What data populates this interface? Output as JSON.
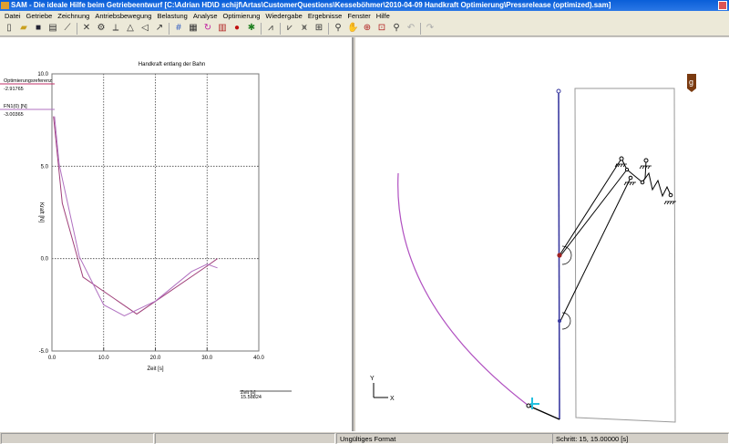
{
  "window": {
    "title": "SAM - Die ideale Hilfe beim Getriebeentwurf [C:\\Adrian HD\\D schijf\\Artas\\CustomerQuestions\\Kesseböhmer\\2010-04-09 Handkraft Optimierung\\Pressrelease (optimized).sam]"
  },
  "menu": [
    "Datei",
    "Getriebe",
    "Zeichnung",
    "Antriebsbewegung",
    "Belastung",
    "Analyse",
    "Optimierung",
    "Wiedergabe",
    "Ergebnisse",
    "Fenster",
    "Hilfe"
  ],
  "toolbar": [
    "new-icon",
    "open-icon",
    "save-icon",
    "print-icon",
    "link-icon",
    "cross-link-icon",
    "gear-icon",
    "slider-icon",
    "support-icon",
    "cam-icon",
    "path-icon",
    "numbers-icon",
    "table-icon",
    "motion-icon",
    "frame-icon",
    "mass-icon",
    "force-icon",
    "graph1-icon",
    "graph2-icon",
    "graph3-icon",
    "fit-icon",
    "zoom-icon",
    "pan-icon",
    "zoom-center-icon",
    "zoom-window-icon",
    "zoom-prev-icon",
    "undo-icon",
    "redo-icon"
  ],
  "legend": [
    {
      "label": "Optimierungsreferenz",
      "value": "-2.91765",
      "color": "#c0306a"
    },
    {
      "label": "FN1(0) [N]",
      "value": "-3.00365",
      "color": "#b070c0"
    }
  ],
  "cursor": {
    "label": "Zeit [s]",
    "value": "15.58824"
  },
  "chart_data": {
    "type": "line",
    "title": "Handkraft entlang der Bahn",
    "xlabel": "Zeit [s]",
    "ylabel": "Kraft [N]",
    "xlim": [
      0,
      40
    ],
    "ylim": [
      -5,
      10
    ],
    "grid": true,
    "xticks": [
      "0.0",
      "10.0",
      "20.0",
      "30.0",
      "40.0"
    ],
    "yticks": [
      "-5.0",
      "0.0",
      "5.0",
      "10.0"
    ],
    "series": [
      {
        "name": "Optimierungsreferenz",
        "color": "#a0407a",
        "x": [
          0.3,
          2,
          6,
          16.4,
          30,
          32
        ],
        "y": [
          7.7,
          3.0,
          -1.0,
          -3.0,
          -0.4,
          0.0
        ]
      },
      {
        "name": "FN1(0) [N]",
        "color": "#b070c0",
        "x": [
          0.5,
          1.4,
          5.3,
          10,
          14,
          20,
          27,
          30,
          32
        ],
        "y": [
          7.7,
          5.1,
          0.1,
          -2.5,
          -3.1,
          -2.3,
          -0.7,
          -0.3,
          -0.5
        ]
      }
    ]
  },
  "mechanism": {
    "badge": "g",
    "axis_x": "X",
    "axis_y": "Y"
  },
  "status": {
    "format": "Ungültiges Format",
    "step": "Schritt: 15,    15.00000 [s]"
  }
}
